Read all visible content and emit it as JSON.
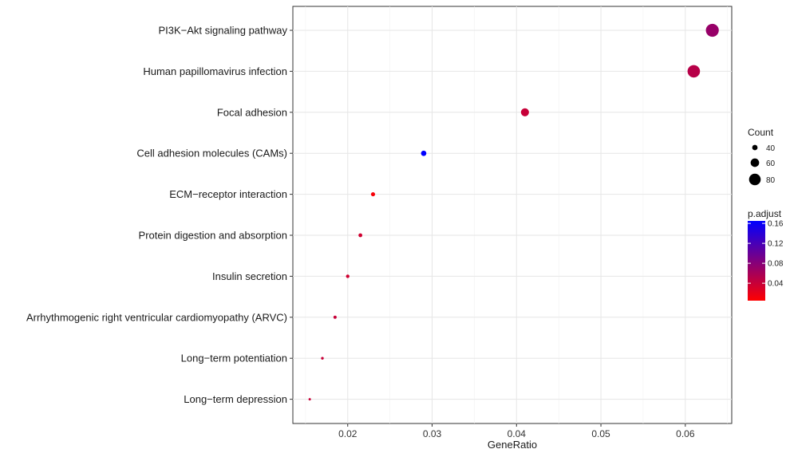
{
  "chart_data": {
    "type": "scatter",
    "xlabel": "GeneRatio",
    "ylabel": "",
    "title": "",
    "xlim": [
      0.0135,
      0.0655
    ],
    "x_ticks": [
      0.02,
      0.03,
      0.04,
      0.05,
      0.06
    ],
    "x_tick_labels": [
      "0.02",
      "0.03",
      "0.04",
      "0.05",
      "0.06"
    ],
    "grid": true,
    "points": [
      {
        "term": "PI3K−Akt signaling pathway",
        "gene_ratio": 0.0632,
        "count": 88,
        "p_adjust": 0.07
      },
      {
        "term": "Human papillomavirus infection",
        "gene_ratio": 0.061,
        "count": 85,
        "p_adjust": 0.05
      },
      {
        "term": "Focal adhesion",
        "gene_ratio": 0.041,
        "count": 57,
        "p_adjust": 0.04
      },
      {
        "term": "Cell adhesion molecules (CAMs)",
        "gene_ratio": 0.029,
        "count": 40,
        "p_adjust": 0.165
      },
      {
        "term": "ECM−receptor interaction",
        "gene_ratio": 0.023,
        "count": 32,
        "p_adjust": 0.01
      },
      {
        "term": "Protein digestion and absorption",
        "gene_ratio": 0.0215,
        "count": 30,
        "p_adjust": 0.035
      },
      {
        "term": "Insulin secretion",
        "gene_ratio": 0.02,
        "count": 28,
        "p_adjust": 0.035
      },
      {
        "term": "Arrhythmogenic right ventricular cardiomyopathy (ARVC)",
        "gene_ratio": 0.0185,
        "count": 26,
        "p_adjust": 0.04
      },
      {
        "term": "Long−term potentiation",
        "gene_ratio": 0.017,
        "count": 23,
        "p_adjust": 0.04
      },
      {
        "term": "Long−term depression",
        "gene_ratio": 0.0155,
        "count": 21,
        "p_adjust": 0.04
      }
    ],
    "legend": {
      "position": "right",
      "size_title": "Count",
      "size_breaks": [
        40,
        60,
        80
      ],
      "size_labels": [
        "40",
        "60",
        "80"
      ],
      "color_title": "p.adjust",
      "color_breaks": [
        0.04,
        0.08,
        0.12,
        0.16
      ],
      "color_labels": [
        "0.04",
        "0.08",
        "0.12",
        "0.16"
      ],
      "color_range": [
        0.005,
        0.165
      ],
      "color_low": "#ff0000",
      "color_high": "#0000ff"
    }
  }
}
